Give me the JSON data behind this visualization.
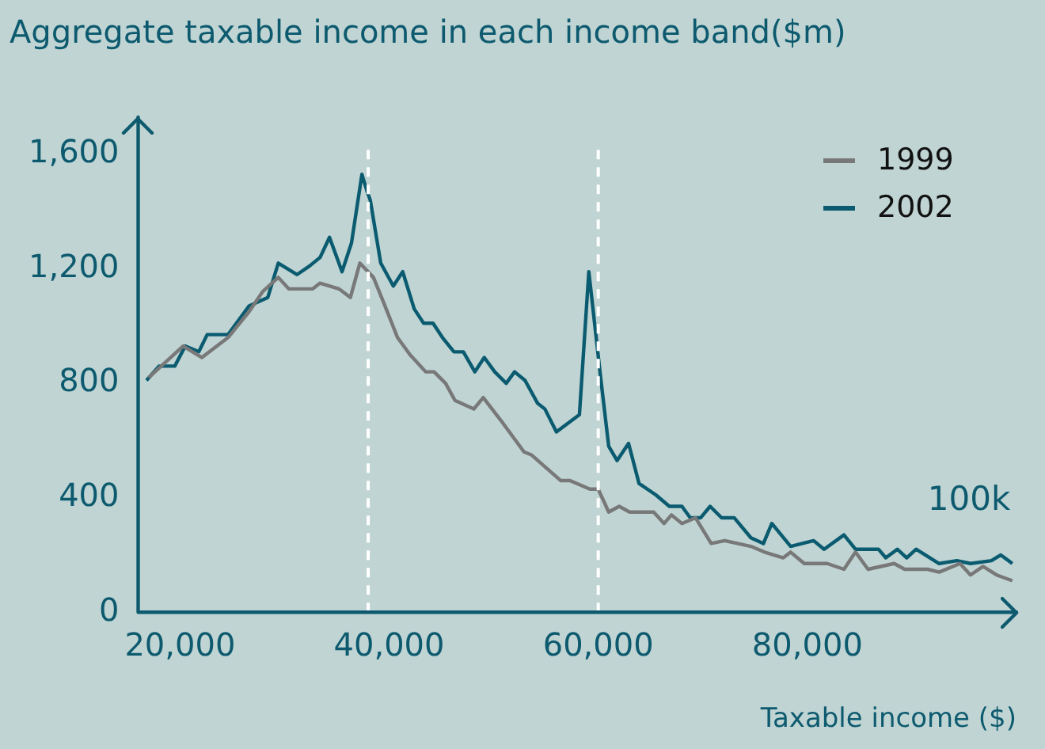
{
  "chart_data": {
    "type": "line",
    "title": "Aggregate taxable income in each income band($m)",
    "xlabel": "Taxable income ($)",
    "xlim": [
      16000,
      100000
    ],
    "xticks": [
      {
        "value": 20000,
        "label": "20,000"
      },
      {
        "value": 40000,
        "label": "40,000"
      },
      {
        "value": 60000,
        "label": "60,000"
      },
      {
        "value": 80000,
        "label": "80,000"
      }
    ],
    "ylim": [
      0,
      1730
    ],
    "yticks": [
      0,
      400,
      800,
      {
        "value": 1200,
        "label": "1,200"
      },
      {
        "value": 1600,
        "label": "1,600"
      }
    ],
    "grid": false,
    "legend": "top right",
    "marker": "none",
    "line_style": "solid",
    "ref_lines": [
      {
        "axis": "x",
        "value": 38000,
        "color": "#ffffff",
        "line_style": "dashed"
      },
      {
        "axis": "x",
        "value": 60000,
        "color": "#ffffff",
        "line_style": "dashed"
      }
    ],
    "annotations": [
      "100k"
    ],
    "series": [
      {
        "name": "1999",
        "color": "#787878",
        "x": [
          17000,
          18500,
          20300,
          22100,
          24600,
          26600,
          27900,
          29400,
          30400,
          32700,
          33400,
          35200,
          36300,
          37200,
          38500,
          39500,
          40800,
          42000,
          43500,
          44300,
          45400,
          46300,
          48100,
          49000,
          50900,
          52900,
          53600,
          56400,
          57300,
          59200,
          60000,
          61000,
          62000,
          63000,
          65300,
          66300,
          67000,
          68000,
          69300,
          70800,
          72100,
          74600,
          75900,
          77700,
          78400,
          79700,
          81900,
          83500,
          84600,
          85800,
          88300,
          89300,
          91500,
          92600,
          94600,
          95600,
          96800,
          98100,
          99600
        ],
        "values": [
          820,
          870,
          930,
          890,
          960,
          1050,
          1120,
          1170,
          1130,
          1130,
          1150,
          1130,
          1100,
          1220,
          1170,
          1080,
          960,
          900,
          840,
          840,
          800,
          740,
          710,
          750,
          660,
          560,
          550,
          460,
          460,
          430,
          430,
          350,
          370,
          350,
          350,
          310,
          340,
          310,
          330,
          240,
          250,
          230,
          210,
          190,
          210,
          170,
          170,
          150,
          210,
          150,
          170,
          150,
          150,
          140,
          170,
          130,
          160,
          130,
          110
        ]
      },
      {
        "name": "2002",
        "color": "#0b5b70",
        "x": [
          16800,
          18000,
          19500,
          20500,
          21800,
          22600,
          24600,
          26600,
          28400,
          29400,
          31200,
          32400,
          33400,
          34300,
          35500,
          36400,
          37400,
          37900,
          38200,
          39200,
          40400,
          41300,
          42400,
          43300,
          44200,
          45100,
          46200,
          47100,
          48200,
          49100,
          50100,
          51200,
          52000,
          53000,
          54200,
          54900,
          56000,
          58200,
          59100,
          60200,
          61000,
          61800,
          62900,
          63900,
          65500,
          66800,
          68000,
          68800,
          69800,
          70700,
          71800,
          73000,
          74600,
          75800,
          76600,
          78400,
          80600,
          81600,
          83500,
          84600,
          86800,
          87500,
          88600,
          89500,
          90400,
          92600,
          94300,
          95600,
          97600,
          98500,
          99600
        ],
        "values": [
          810,
          860,
          860,
          930,
          910,
          970,
          970,
          1070,
          1100,
          1220,
          1180,
          1210,
          1240,
          1310,
          1190,
          1290,
          1530,
          1470,
          1440,
          1220,
          1140,
          1190,
          1060,
          1010,
          1010,
          960,
          910,
          910,
          840,
          890,
          840,
          800,
          840,
          810,
          730,
          710,
          630,
          690,
          1190,
          830,
          580,
          530,
          590,
          450,
          410,
          370,
          370,
          330,
          330,
          370,
          330,
          330,
          260,
          240,
          310,
          230,
          250,
          220,
          270,
          220,
          220,
          190,
          220,
          190,
          220,
          170,
          180,
          170,
          180,
          200,
          170
        ]
      }
    ]
  }
}
